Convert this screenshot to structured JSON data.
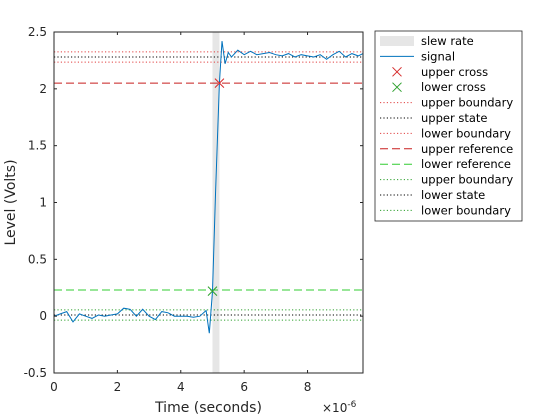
{
  "chart_data": {
    "type": "line",
    "xlabel": "Time (seconds)",
    "ylabel": "Level (Volts)",
    "x_exponent_label": "×10",
    "x_exponent": "-6",
    "xlim": [
      0,
      9.75
    ],
    "ylim": [
      -0.5,
      2.5
    ],
    "x_scale": 1e-06,
    "xticks": [
      0,
      2,
      4,
      6,
      8
    ],
    "yticks": [
      -0.5,
      0,
      0.5,
      1,
      1.5,
      2,
      2.5
    ],
    "xtick_labels": [
      "0",
      "2",
      "4",
      "6",
      "8"
    ],
    "ytick_labels": [
      "-0.5",
      "0",
      "0.5",
      "1",
      "1.5",
      "2",
      "2.5"
    ],
    "grid": false,
    "legend_position": "top-right outside",
    "slew_region": {
      "x": [
        5.0,
        5.22
      ]
    },
    "signal": {
      "x": [
        0,
        0.2,
        0.4,
        0.6,
        0.8,
        1.0,
        1.2,
        1.4,
        1.6,
        1.8,
        2.0,
        2.2,
        2.4,
        2.6,
        2.8,
        3.0,
        3.2,
        3.4,
        3.6,
        3.8,
        4.0,
        4.2,
        4.4,
        4.6,
        4.8,
        4.9,
        5.0,
        5.1,
        5.22,
        5.3,
        5.4,
        5.5,
        5.6,
        5.8,
        6.0,
        6.2,
        6.4,
        6.6,
        6.8,
        7.0,
        7.2,
        7.4,
        7.6,
        7.8,
        8.0,
        8.2,
        8.4,
        8.6,
        8.8,
        9.0,
        9.2,
        9.4,
        9.6,
        9.75
      ],
      "y": [
        0.0,
        0.02,
        0.04,
        -0.05,
        0.02,
        0.0,
        -0.02,
        0.01,
        0.0,
        0.01,
        0.02,
        0.07,
        0.06,
        0.0,
        0.06,
        0.0,
        -0.03,
        0.04,
        0.03,
        0.0,
        0.0,
        0.0,
        -0.01,
        0.0,
        0.05,
        -0.15,
        0.22,
        1.1,
        2.05,
        2.42,
        2.22,
        2.32,
        2.28,
        2.34,
        2.3,
        2.33,
        2.3,
        2.31,
        2.32,
        2.3,
        2.29,
        2.31,
        2.28,
        2.3,
        2.29,
        2.28,
        2.3,
        2.26,
        2.3,
        2.33,
        2.28,
        2.31,
        2.29,
        2.31
      ]
    },
    "upper_cross": {
      "x": 5.22,
      "y": 2.05
    },
    "lower_cross": {
      "x": 5.0,
      "y": 0.22
    },
    "levels": {
      "upper_state": 2.28,
      "upper_boundary_high": 2.325,
      "upper_boundary_low": 2.235,
      "upper_reference": 2.05,
      "lower_reference": 0.23,
      "lower_state": 0.01,
      "lower_boundary_high": 0.055,
      "lower_boundary_low": -0.035
    },
    "legend": [
      {
        "label": "slew rate",
        "kind": "patch",
        "color": "#e6e6e6"
      },
      {
        "label": "signal",
        "kind": "line",
        "color": "#0072bd",
        "dash": "solid"
      },
      {
        "label": "upper cross",
        "kind": "marker",
        "color": "#d62728"
      },
      {
        "label": "lower cross",
        "kind": "marker",
        "color": "#2ca02c"
      },
      {
        "label": "upper boundary",
        "kind": "line",
        "color": "#e04040",
        "dash": "dotted"
      },
      {
        "label": "upper state",
        "kind": "line",
        "color": "#000000",
        "dash": "dotted"
      },
      {
        "label": "lower boundary",
        "kind": "line",
        "color": "#e04040",
        "dash": "dotted"
      },
      {
        "label": "upper reference",
        "kind": "line",
        "color": "#c81e1e",
        "dash": "dashed"
      },
      {
        "label": "lower reference",
        "kind": "line",
        "color": "#30cc30",
        "dash": "dashed"
      },
      {
        "label": "upper boundary",
        "kind": "line",
        "color": "#2ca02c",
        "dash": "dotted"
      },
      {
        "label": "lower state",
        "kind": "line",
        "color": "#000000",
        "dash": "dotted"
      },
      {
        "label": "lower boundary",
        "kind": "line",
        "color": "#2ca02c",
        "dash": "dotted"
      }
    ]
  }
}
